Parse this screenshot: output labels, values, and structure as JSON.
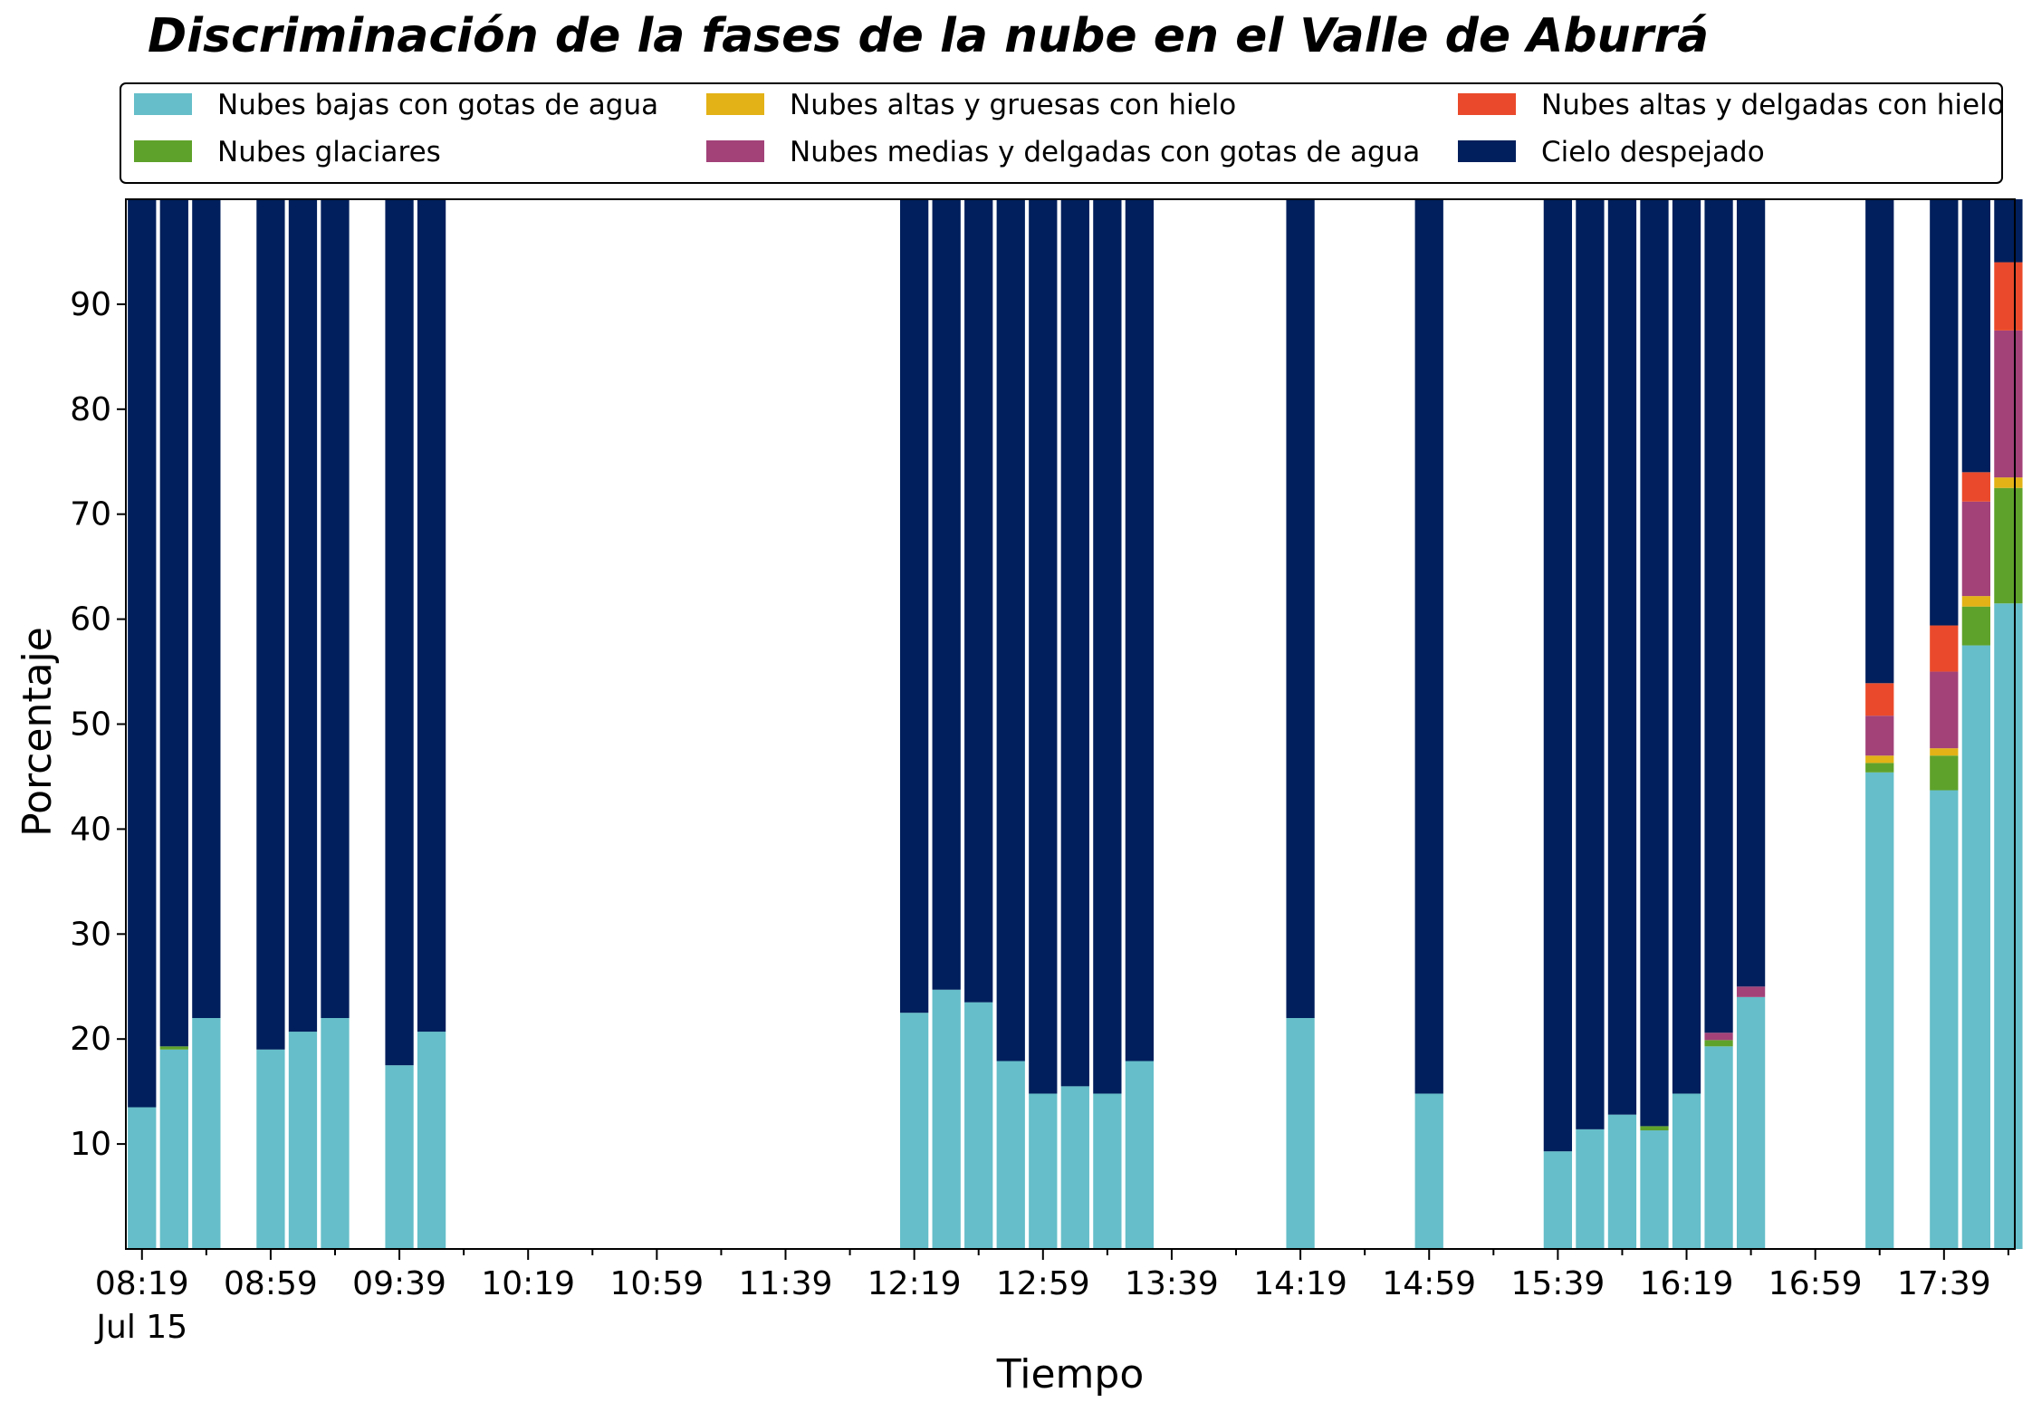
{
  "chart_data": {
    "type": "bar",
    "stacked": true,
    "title": "Discriminación de la fases de la nube en el Valle de Aburrá",
    "xlabel": "Tiempo",
    "ylabel": "Porcentaje",
    "ylim": [
      0,
      100
    ],
    "yticks": [
      10,
      20,
      30,
      40,
      50,
      60,
      70,
      80,
      90
    ],
    "xlim": [
      "08:14",
      "18:01"
    ],
    "xtick_labels": [
      "08:19",
      "08:59",
      "09:39",
      "10:19",
      "10:59",
      "11:39",
      "12:19",
      "12:59",
      "13:39",
      "14:19",
      "14:59",
      "15:39",
      "16:19",
      "16:59",
      "17:39"
    ],
    "xtick_sublabel": "Jul 15",
    "legend_placement": "top",
    "grid": false,
    "x": [
      "08:19",
      "08:29",
      "08:39",
      "08:59",
      "09:09",
      "09:19",
      "09:39",
      "09:49",
      "12:19",
      "12:29",
      "12:39",
      "12:49",
      "12:59",
      "13:09",
      "13:19",
      "13:29",
      "14:19",
      "14:59",
      "15:39",
      "15:49",
      "15:59",
      "16:09",
      "16:19",
      "16:29",
      "16:39",
      "17:19",
      "17:39",
      "17:49",
      "17:59"
    ],
    "series": [
      {
        "name": "Nubes bajas con gotas de agua",
        "color": "#65bec9",
        "values": [
          13.5,
          19.0,
          22.0,
          19.0,
          20.7,
          22.0,
          17.5,
          20.7,
          22.5,
          24.7,
          23.5,
          17.9,
          14.8,
          15.5,
          14.8,
          17.9,
          22.0,
          14.8,
          9.3,
          11.4,
          12.8,
          11.3,
          14.8,
          19.3,
          24.0,
          45.4,
          43.7,
          57.5,
          61.5
        ]
      },
      {
        "name": "Nubes glaciares",
        "color": "#5fa22b",
        "values": [
          0,
          0.3,
          0,
          0,
          0,
          0,
          0,
          0,
          0,
          0,
          0,
          0,
          0,
          0,
          0,
          0,
          0,
          0,
          0,
          0,
          0,
          0.4,
          0,
          0.6,
          0,
          0.9,
          3.3,
          3.7,
          11.0
        ]
      },
      {
        "name": "Nubes altas y gruesas con hielo",
        "color": "#e3b216",
        "values": [
          0,
          0,
          0,
          0,
          0,
          0,
          0,
          0,
          0,
          0,
          0,
          0,
          0,
          0,
          0,
          0,
          0,
          0,
          0,
          0,
          0,
          0,
          0,
          0,
          0,
          0.7,
          0.7,
          1.0,
          1.0
        ]
      },
      {
        "name": "Nubes medias y delgadas con gotas de agua",
        "color": "#a24279",
        "values": [
          0,
          0,
          0,
          0,
          0,
          0,
          0,
          0,
          0,
          0,
          0,
          0,
          0,
          0,
          0,
          0,
          0,
          0,
          0,
          0,
          0,
          0,
          0,
          0.7,
          1.0,
          3.8,
          7.3,
          9.0,
          14.0
        ]
      },
      {
        "name": "Nubes altas y delgadas con hielo",
        "color": "#ea4a2b",
        "values": [
          0,
          0,
          0,
          0,
          0,
          0,
          0,
          0,
          0,
          0,
          0,
          0,
          0,
          0,
          0,
          0,
          0,
          0,
          0,
          0,
          0,
          0,
          0,
          0,
          0,
          3.1,
          4.4,
          2.8,
          6.5
        ]
      },
      {
        "name": "Cielo despejado",
        "color": "#001f5c",
        "values": [
          86.5,
          80.7,
          78.0,
          81.0,
          79.3,
          78.0,
          82.5,
          79.3,
          77.5,
          75.3,
          76.5,
          82.1,
          85.2,
          84.5,
          85.2,
          82.1,
          78.0,
          85.2,
          90.7,
          88.6,
          87.2,
          88.3,
          85.2,
          79.4,
          75.0,
          46.1,
          40.6,
          26.0,
          6.0
        ]
      }
    ]
  }
}
